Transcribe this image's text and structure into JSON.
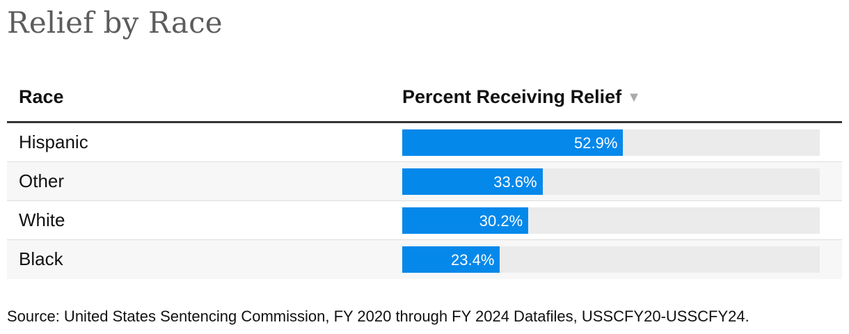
{
  "title": "Relief by Race",
  "table": {
    "headers": {
      "race": "Race",
      "percent": "Percent Receiving Relief",
      "sort_icon": "sort-descending-icon"
    }
  },
  "chart_data": {
    "type": "bar",
    "orientation": "horizontal",
    "title": "Relief by Race",
    "xlabel": "Percent Receiving Relief",
    "ylabel": "Race",
    "categories": [
      "Hispanic",
      "Other",
      "White",
      "Black"
    ],
    "values": [
      52.9,
      33.6,
      30.2,
      23.4
    ],
    "labels": [
      "52.9%",
      "33.6%",
      "30.2%",
      "23.4%"
    ],
    "xlim": [
      0,
      100
    ],
    "bar_color": "#0488ea",
    "track_color": "#ebebeb"
  },
  "source": "Source: United States Sentencing Commission, FY 2020 through FY 2024 Datafiles, USSCFY20-USSCFY24."
}
